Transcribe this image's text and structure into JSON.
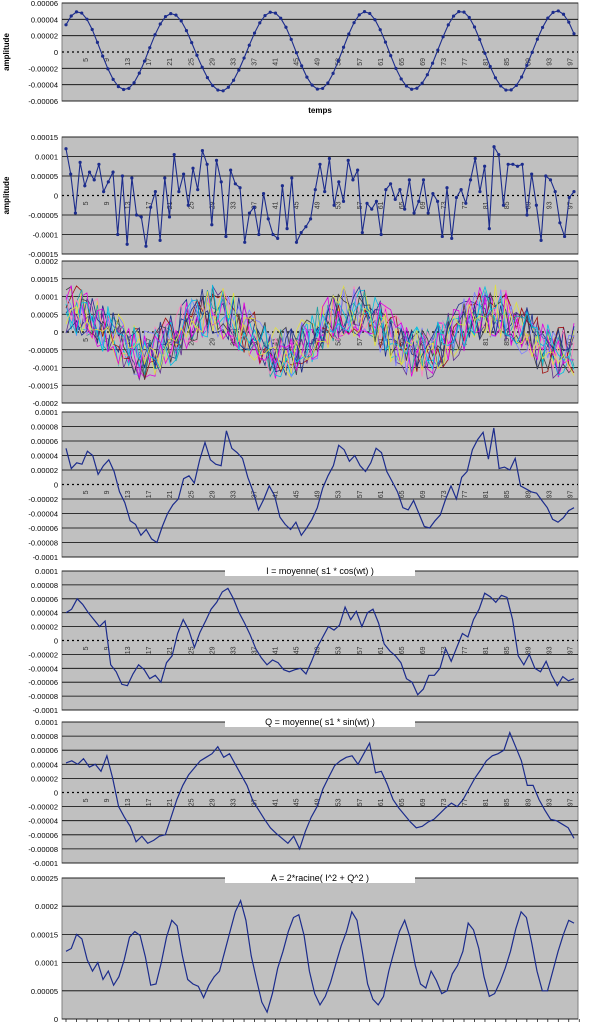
{
  "colors": {
    "plot_bg": "#c0c0c0",
    "grid": "#000000",
    "series_line": "#1c2c8c",
    "multi_series": [
      "#1c2c8c",
      "#e000e0",
      "#00c0e0",
      "#e0e040",
      "#603090",
      "#a01010",
      "#20a0a0",
      "#ff80c0",
      "#8080ff",
      "#404040"
    ]
  },
  "chart_data": [
    {
      "id": "p1",
      "type": "line",
      "title": "",
      "xlabel": "temps",
      "ylabel": "amplitude",
      "ylim": [
        -6e-05,
        6e-05
      ],
      "yticks": [
        "0.00006",
        "0.00004",
        "0.00002",
        "0",
        "-0.00002",
        "-0.00004",
        "-0.00006"
      ],
      "xticks": [
        "5",
        "9",
        "13",
        "17",
        "21",
        "25",
        "29",
        "33",
        "37",
        "41",
        "45",
        "49",
        "53",
        "57",
        "61",
        "65",
        "69",
        "73",
        "77",
        "81",
        "85",
        "89",
        "93",
        "97"
      ],
      "markers": true,
      "series": [
        {
          "values": [
            3.33e-05,
            4.41e-05,
            4.91e-05,
            4.77e-05,
            4.02e-05,
            2.76e-05,
            1.18e-05,
            -5e-06,
            -2.06e-05,
            -3.35e-05,
            -4.24e-05,
            -4.59e-05,
            -4.45e-05,
            -3.76e-05,
            -2.59e-05,
            -1.12e-05,
            5.3e-06,
            2.11e-05,
            3.43e-05,
            4.34e-05,
            4.7e-05,
            4.52e-05,
            3.81e-05,
            2.62e-05,
            1.15e-05,
            -4e-06,
            -1.87e-05,
            -3.14e-05,
            -4.1e-05,
            -4.66e-05,
            -4.75e-05,
            -4.32e-05,
            -3.46e-05,
            -2.22e-05,
            -7.4e-06,
            8.3e-06,
            2.32e-05,
            3.57e-05,
            4.46e-05,
            4.87e-05,
            4.76e-05,
            4.14e-05,
            3.03e-05,
            1.55e-05,
            -9e-07,
            -1.7e-05,
            -3.08e-05,
            -4.06e-05,
            -4.54e-05,
            -4.46e-05,
            -3.8e-05,
            -2.62e-05,
            -1.09e-05,
            5.8e-06,
            2.21e-05,
            3.59e-05,
            4.55e-05,
            4.94e-05,
            4.72e-05,
            3.95e-05,
            2.73e-05,
            1.21e-05,
            -4.4e-06,
            -2.01e-05,
            -3.3e-05,
            -4.17e-05,
            -4.56e-05,
            -4.44e-05,
            -3.83e-05,
            -2.78e-05,
            -1.37e-05,
            2.4e-06,
            1.87e-05,
            3.32e-05,
            4.4e-05,
            4.94e-05,
            4.88e-05,
            4.22e-05,
            3.06e-05,
            1.53e-05,
            -1.5e-06,
            -1.78e-05,
            -3.16e-05,
            -4.15e-05,
            -4.66e-05,
            -4.64e-05,
            -4.09e-05,
            -3.06e-05,
            -1.64e-05,
            -4e-07,
            1.56e-05,
            3.01e-05,
            4.15e-05,
            4.85e-05,
            5.03e-05,
            4.62e-05,
            3.66e-05,
            2.24e-05
          ]
        }
      ]
    },
    {
      "id": "p2",
      "type": "line",
      "title": "",
      "xlabel": "",
      "ylabel": "amplitude",
      "ylim": [
        -0.00015,
        0.00015
      ],
      "yticks": [
        "0.00015",
        "0.0001",
        "0.00005",
        "0",
        "-0.00005",
        "-0.0001",
        "-0.00015"
      ],
      "xticks": [
        "5",
        "9",
        "13",
        "17",
        "21",
        "25",
        "29",
        "33",
        "37",
        "41",
        "45",
        "49",
        "53",
        "57",
        "61",
        "65",
        "69",
        "73",
        "77",
        "81",
        "85",
        "89",
        "93",
        "97"
      ],
      "markers": true,
      "series": [
        {
          "values": [
            0.00012,
            5.5e-05,
            -4.5e-05,
            8.5e-05,
            2.5e-05,
            6e-05,
            4e-05,
            8e-05,
            1e-05,
            3.5e-05,
            6e-05,
            -0.0001,
            5e-05,
            -0.000125,
            4.5e-05,
            -5e-05,
            -5.5e-05,
            -0.00013,
            -3e-05,
            1e-05,
            -0.000115,
            4.5e-05,
            -5.5e-05,
            0.000105,
            1e-05,
            5.5e-05,
            -2.5e-05,
            7e-05,
            1.5e-05,
            0.000115,
            8e-05,
            -7.5e-05,
            9e-05,
            3.5e-05,
            -0.000105,
            6.5e-05,
            3e-05,
            2e-05,
            -0.00012,
            -4.5e-05,
            -3e-05,
            -0.0001,
            5e-06,
            -6e-05,
            -0.0001,
            -0.00011,
            2.5e-05,
            -8.5e-05,
            4.5e-05,
            -0.00012,
            -9.5e-05,
            -8e-05,
            -6e-05,
            1.5e-05,
            8e-05,
            1e-05,
            9.5e-05,
            -2.5e-05,
            3.5e-05,
            -1.5e-05,
            9e-05,
            4e-05,
            6.5e-05,
            -9.5e-05,
            -2e-05,
            -3.5e-05,
            -1.5e-05,
            -0.0001,
            1.5e-05,
            3e-05,
            -1e-05,
            1.5e-05,
            -3.5e-05,
            4e-05,
            -4.5e-05,
            -1.5e-05,
            4e-05,
            -4.5e-05,
            5e-06,
            -1.5e-05,
            -0.000105,
            2e-05,
            -0.00011,
            -5e-06,
            1.5e-05,
            -2e-05,
            4e-05,
            9.5e-05,
            1e-05,
            7.5e-05,
            -8.5e-05,
            0.000125,
            0.000105,
            -2.5e-05,
            8e-05,
            8e-05,
            7.5e-05,
            8e-05,
            -5e-05,
            5.5e-05,
            -2.5e-05,
            -0.000115,
            5e-05,
            4e-05,
            1e-05,
            -7e-05,
            -0.000105,
            -5e-06,
            1e-05
          ]
        }
      ]
    },
    {
      "id": "p3",
      "type": "line",
      "title": "",
      "xlabel": "",
      "ylabel": "",
      "ylim": [
        -0.0002,
        0.0002
      ],
      "yticks": [
        "0.0002",
        "0.00015",
        "0.0001",
        "0.00005",
        "0",
        "-0.00005",
        "-0.0001",
        "-0.00015",
        "-0.0002"
      ],
      "xticks": [
        "5",
        "9",
        "13",
        "17",
        "21",
        "25",
        "29",
        "33",
        "37",
        "41",
        "45",
        "49",
        "53",
        "57",
        "61",
        "65",
        "69",
        "73",
        "77",
        "81",
        "85",
        "89",
        "93",
        "97"
      ],
      "multi": true,
      "markers": false,
      "series": []
    },
    {
      "id": "p4",
      "type": "line",
      "title": "",
      "xlabel": "",
      "ylabel": "",
      "ylim": [
        -0.0001,
        0.0001
      ],
      "yticks": [
        "0.0001",
        "0.00008",
        "0.00006",
        "0.00004",
        "0.00002",
        "0",
        "-0.00002",
        "-0.00004",
        "-0.00006",
        "-0.00008",
        "-0.0001"
      ],
      "xticks": [
        "5",
        "9",
        "13",
        "17",
        "21",
        "25",
        "29",
        "33",
        "37",
        "41",
        "45",
        "49",
        "53",
        "57",
        "61",
        "65",
        "69",
        "73",
        "77",
        "81",
        "85",
        "89",
        "93",
        "97"
      ],
      "markers": false,
      "series": [
        {
          "values": [
            5e-05,
            2.2e-05,
            3e-05,
            2.8e-05,
            4.6e-05,
            4e-05,
            1.4e-05,
            2.6e-05,
            3.4e-05,
            1.8e-05,
            -1e-05,
            -2.5e-05,
            -5e-05,
            -5.5e-05,
            -7e-05,
            -6.2e-05,
            -7.5e-05,
            -8e-05,
            -5.8e-05,
            -4e-05,
            -2.8e-05,
            -2e-05,
            8e-06,
            1.2e-05,
            2e-06,
            3.4e-05,
            5.8e-05,
            3.4e-05,
            2.8e-05,
            2.6e-05,
            7.4e-05,
            5e-05,
            4.4e-05,
            3.6e-05,
            1e-05,
            -1e-05,
            -3.5e-05,
            -2e-05,
            -2e-06,
            -1.5e-05,
            -4.5e-05,
            -5.5e-05,
            -6.2e-05,
            -5.2e-05,
            -7e-05,
            -6e-05,
            -4.8e-05,
            -3.2e-05,
            -5e-06,
            1.2e-05,
            2.6e-05,
            5.4e-05,
            4.8e-05,
            3.2e-05,
            4e-05,
            2.6e-05,
            1.8e-05,
            3e-05,
            5e-05,
            4.4e-05,
            1.8e-05,
            4e-06,
            -1e-05,
            -3.2e-05,
            -3.5e-05,
            -2.2e-05,
            -4e-05,
            -5.8e-05,
            -6e-05,
            -5e-05,
            -4.2e-05,
            -2e-05,
            -2e-06,
            -2e-05,
            1e-05,
            1.8e-05,
            4.8e-05,
            6.2e-05,
            7.2e-05,
            3.5e-05,
            7.8e-05,
            2.2e-05,
            2.4e-05,
            2e-05,
            3.6e-05,
            -2e-06,
            -6e-06,
            -1e-05,
            -1.2e-05,
            -2.2e-05,
            -3.2e-05,
            -4.8e-05,
            -5.2e-05,
            -4.6e-05,
            -3.6e-05,
            -3.2e-05
          ]
        }
      ]
    },
    {
      "id": "p5",
      "type": "line",
      "title": "I = moyenne( s1 * cos(wt) )",
      "xlabel": "",
      "ylabel": "",
      "ylim": [
        -0.0001,
        0.0001
      ],
      "yticks": [
        "0.0001",
        "0.00008",
        "0.00006",
        "0.00004",
        "0.00002",
        "0",
        "-0.00002",
        "-0.00004",
        "-0.00006",
        "-0.00008",
        "-0.0001"
      ],
      "xticks": [
        "5",
        "9",
        "13",
        "17",
        "21",
        "25",
        "29",
        "33",
        "37",
        "41",
        "45",
        "49",
        "53",
        "57",
        "61",
        "65",
        "69",
        "73",
        "77",
        "81",
        "85",
        "89",
        "93",
        "97"
      ],
      "markers": false,
      "series": [
        {
          "values": [
            4e-05,
            4.5e-05,
            6e-05,
            5.2e-05,
            4e-05,
            3e-05,
            2e-05,
            2.8e-05,
            -3.5e-05,
            -4.5e-05,
            -6.3e-05,
            -6.5e-05,
            -4.8e-05,
            -3.5e-05,
            -4.2e-05,
            -5.5e-05,
            -5e-05,
            -6e-05,
            -3.2e-05,
            -2.2e-05,
            1e-05,
            3e-05,
            1.5e-05,
            -1e-05,
            1.2e-05,
            2.8e-05,
            4.5e-05,
            5.5e-05,
            7e-05,
            7.5e-05,
            6e-05,
            4e-05,
            2.5e-05,
            8e-06,
            -1.2e-05,
            -2.5e-05,
            -3.5e-05,
            -2.8e-05,
            -3.2e-05,
            -4.2e-05,
            -4.5e-05,
            -4.2e-05,
            -4e-05,
            -4.8e-05,
            -3e-05,
            -1e-05,
            5e-06,
            2e-05,
            1.5e-05,
            2.2e-05,
            4.8e-05,
            3e-05,
            4.2e-05,
            2e-05,
            4e-05,
            4.5e-05,
            2.5e-05,
            -5e-06,
            -1.5e-05,
            -2.2e-05,
            -3.2e-05,
            -5.5e-05,
            -6e-05,
            -7.8e-05,
            -7e-05,
            -5e-05,
            -5e-05,
            -4e-05,
            -1.2e-05,
            -3e-05,
            -1e-05,
            1e-05,
            5e-06,
            3e-05,
            4.5e-05,
            6.8e-05,
            6.3e-05,
            5.5e-05,
            6.5e-05,
            6.2e-05,
            3e-05,
            -2.2e-05,
            -3.5e-05,
            -2e-05,
            -4e-05,
            -4.5e-05,
            -3e-05,
            -5e-05,
            -6.5e-05,
            -5.2e-05,
            -5.8e-05,
            -5.5e-05
          ]
        }
      ]
    },
    {
      "id": "p6",
      "type": "line",
      "title": "Q = moyenne( s1 * sin(wt) )",
      "xlabel": "",
      "ylabel": "",
      "ylim": [
        -0.0001,
        0.0001
      ],
      "yticks": [
        "0.0001",
        "0.00008",
        "0.00006",
        "0.00004",
        "0.00002",
        "0",
        "-0.00002",
        "-0.00004",
        "-0.00006",
        "-0.00008",
        "-0.0001"
      ],
      "xticks": [
        "5",
        "9",
        "13",
        "17",
        "21",
        "25",
        "29",
        "33",
        "37",
        "41",
        "45",
        "49",
        "53",
        "57",
        "61",
        "65",
        "69",
        "73",
        "77",
        "81",
        "85",
        "89",
        "93",
        "97"
      ],
      "markers": false,
      "series": [
        {
          "values": [
            4.2e-05,
            4.5e-05,
            4e-05,
            4.8e-05,
            3.6e-05,
            4e-05,
            3e-05,
            5.2e-05,
            2e-05,
            -2e-05,
            -3.5e-05,
            -4.8e-05,
            -7e-05,
            -6.2e-05,
            -7.2e-05,
            -6.8e-05,
            -6.2e-05,
            -6e-05,
            -3.5e-05,
            -1e-05,
            1e-05,
            2.5e-05,
            3.5e-05,
            4.5e-05,
            5e-05,
            5.5e-05,
            6.5e-05,
            5e-05,
            5.5e-05,
            4e-05,
            2.5e-05,
            1e-05,
            -1.2e-05,
            -2.5e-05,
            -3.8e-05,
            -5e-05,
            -5.8e-05,
            -6.5e-05,
            -7.2e-05,
            -6.2e-05,
            -8e-05,
            -5.5e-05,
            -3.5e-05,
            -2e-05,
            5e-06,
            2.2e-05,
            3.8e-05,
            4.5e-05,
            5e-05,
            5.2e-05,
            4e-05,
            5.5e-05,
            7e-05,
            2.8e-05,
            3e-05,
            1.2e-05,
            -1e-05,
            -2.2e-05,
            -3.2e-05,
            -4.2e-05,
            -5e-05,
            -4.8e-05,
            -4.2e-05,
            -3.8e-05,
            -3e-05,
            -2.2e-05,
            -1.5e-05,
            -2e-05,
            -1e-05,
            5e-06,
            2e-05,
            3.2e-05,
            4.5e-05,
            5.2e-05,
            5.5e-05,
            6e-05,
            8.5e-05,
            6.5e-05,
            4.5e-05,
            1e-05,
            1e-05,
            -1e-05,
            -2.5e-05,
            -3.8e-05,
            -4e-05,
            -4.5e-05,
            -5e-05,
            -6.5e-05
          ]
        }
      ]
    },
    {
      "id": "p7",
      "type": "line",
      "title": "A = 2*racine( I^2 + Q^2 )",
      "xlabel": "",
      "ylabel": "",
      "ylim": [
        0,
        0.00025
      ],
      "yticks": [
        "0.00025",
        "0.0002",
        "0.00015",
        "0.0001",
        "0.00005",
        "0"
      ],
      "xticks": [],
      "markers": false,
      "series": [
        {
          "values": [
            0.00012,
            0.000125,
            0.00015,
            0.000142,
            0.000105,
            8.5e-05,
            0.0001,
            7e-05,
            8.5e-05,
            6e-05,
            7.5e-05,
            0.000105,
            0.000145,
            0.000155,
            0.000148,
            0.00011,
            6e-05,
            6.2e-05,
            0.0001,
            0.000145,
            0.000175,
            0.000165,
            0.000112,
            7e-05,
            6.2e-05,
            5.8e-05,
            3.8e-05,
            6e-05,
            7.5e-05,
            8.5e-05,
            0.00012,
            0.000155,
            0.00019,
            0.00021,
            0.000175,
            0.000112,
            7e-05,
            3e-05,
            1.2e-05,
            4.5e-05,
            9e-05,
            0.00012,
            0.000155,
            0.00018,
            0.000185,
            0.000148,
            8.5e-05,
            4.5e-05,
            2.5e-05,
            4e-05,
            6.5e-05,
            9.8e-05,
            0.00013,
            0.000155,
            0.00019,
            0.000175,
            0.00012,
            6.2e-05,
            3.5e-05,
            2.5e-05,
            4e-05,
            8.5e-05,
            0.00012,
            0.000155,
            0.000175,
            0.000145,
            9.5e-05,
            6.2e-05,
            5.5e-05,
            8.5e-05,
            6.8e-05,
            4.5e-05,
            5e-05,
            8e-05,
            9.5e-05,
            0.00012,
            0.00017,
            0.000158,
            0.000125,
            7.5e-05,
            4e-05,
            4.5e-05,
            6.5e-05,
            9e-05,
            0.00012,
            0.00016,
            0.00019,
            0.00018,
            0.000135,
            8.5e-05,
            5e-05,
            5e-05,
            8.5e-05,
            0.00012,
            0.00015,
            0.000175,
            0.00017
          ]
        }
      ]
    }
  ]
}
